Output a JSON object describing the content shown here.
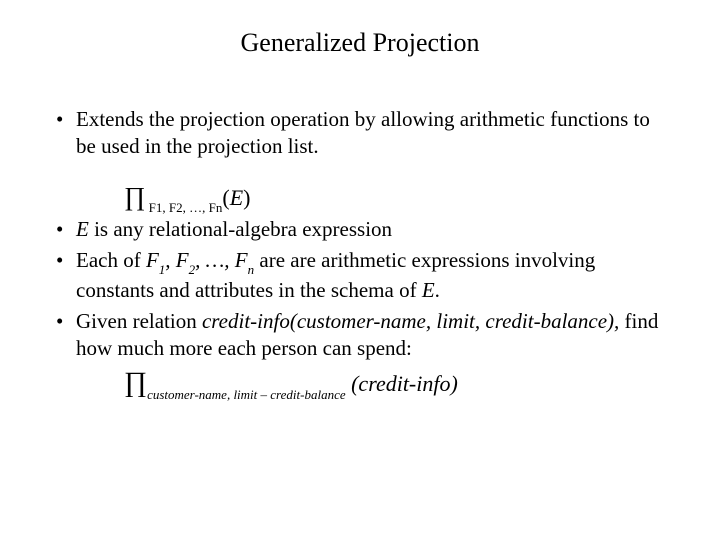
{
  "slide": {
    "title": "Generalized Projection",
    "title_fontsize": 26,
    "body_fontsize": 21,
    "background_color": "#ffffff",
    "text_color": "#000000",
    "font_family": "Times New Roman",
    "bullets": [
      {
        "text": "Extends the projection operation by allowing arithmetic functions to be used in the projection list."
      },
      {
        "text_before": "",
        "italic_E": "E",
        "text_after": " is any relational-algebra expression"
      },
      {
        "text_before": "Each of ",
        "f_list": "F₁, F₂, …, Fₙ",
        "text_mid": " are are arithmetic expressions involving constants and attributes in the schema of ",
        "italic_E": "E",
        "text_end": "."
      },
      {
        "text_before": "Given relation ",
        "italic_rel": "credit-info(customer-name, limit, credit-balance),",
        "text_after": " find how much more each person can spend:"
      }
    ],
    "formula_main": {
      "pi": "∏",
      "subscript": " F1, F2, …, Fn",
      "arg_open": "(",
      "arg_var": "E",
      "arg_close": ")"
    },
    "formula_final": {
      "pi": "∏",
      "subscript": "customer-name, limit – credit-balance",
      "spacer": " ",
      "arg": "(credit-info)"
    }
  }
}
